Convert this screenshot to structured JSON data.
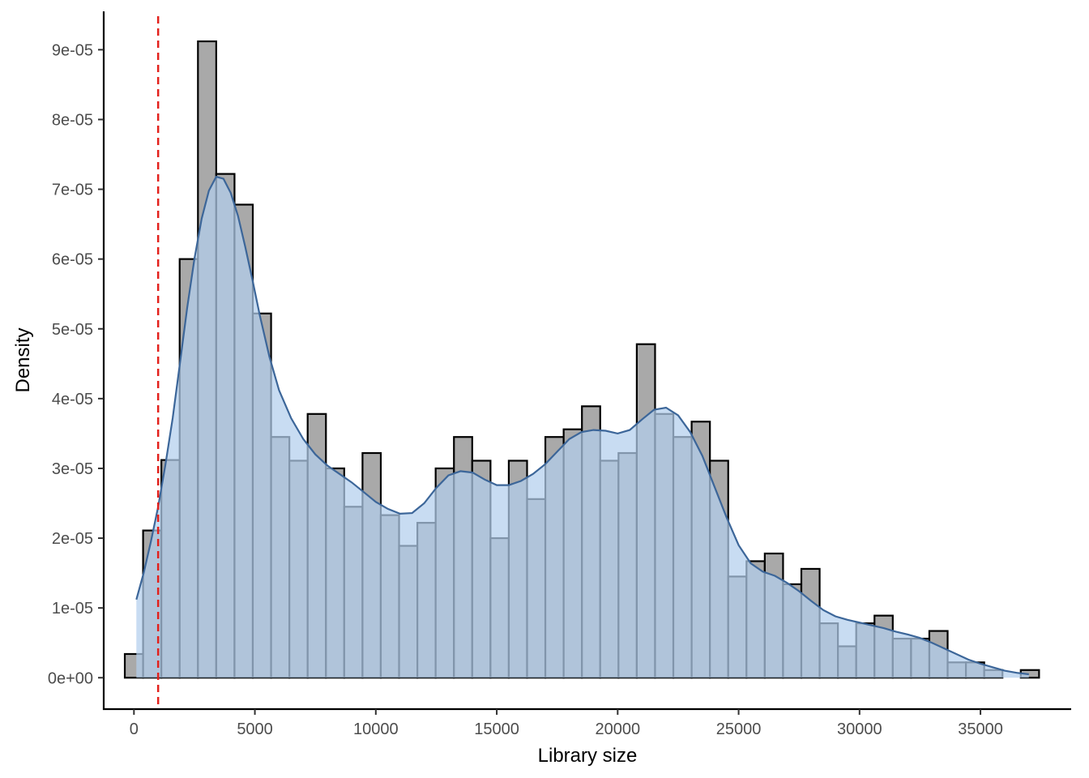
{
  "chart_data": {
    "type": "bar",
    "subtype": "histogram-with-density",
    "xlabel": "Library size",
    "ylabel": "Density",
    "xlim": [
      -1250,
      38750
    ],
    "ylim": [
      -4.5e-06,
      9.55e-05
    ],
    "x_ticks": [
      0,
      5000,
      10000,
      15000,
      20000,
      25000,
      30000,
      35000
    ],
    "x_tick_labels": [
      "0",
      "5000",
      "10000",
      "15000",
      "20000",
      "25000",
      "30000",
      "35000"
    ],
    "y_ticks": [
      0,
      1e-05,
      2e-05,
      3e-05,
      4e-05,
      5e-05,
      6e-05,
      7e-05,
      8e-05,
      9e-05
    ],
    "y_tick_labels": [
      "0e+00",
      "1e-05",
      "2e-05",
      "3e-05",
      "4e-05",
      "5e-05",
      "6e-05",
      "7e-05",
      "8e-05",
      "9e-05"
    ],
    "bin_width": 756,
    "bin_centers": [
      0,
      756,
      1512,
      2268,
      3024,
      3780,
      4536,
      5292,
      6048,
      6804,
      7560,
      8316,
      9072,
      9828,
      10584,
      11340,
      12096,
      12852,
      13608,
      14364,
      15120,
      15876,
      16632,
      17388,
      18144,
      18900,
      19656,
      20412,
      21168,
      21924,
      22680,
      23436,
      24192,
      24948,
      25704,
      26460,
      27216,
      27972,
      28728,
      29484,
      30240,
      30996,
      31752,
      32508,
      33264,
      34020,
      34776,
      35532,
      36288,
      37044
    ],
    "histogram_density": [
      3.4e-06,
      2.11e-05,
      3.12e-05,
      6e-05,
      9.12e-05,
      7.22e-05,
      6.78e-05,
      5.22e-05,
      3.45e-05,
      3.11e-05,
      3.78e-05,
      3e-05,
      2.45e-05,
      3.22e-05,
      2.33e-05,
      1.89e-05,
      2.22e-05,
      3e-05,
      3.45e-05,
      3.11e-05,
      2e-05,
      3.11e-05,
      2.56e-05,
      3.45e-05,
      3.56e-05,
      3.89e-05,
      3.11e-05,
      3.22e-05,
      4.78e-05,
      3.78e-05,
      3.45e-05,
      3.67e-05,
      3.11e-05,
      1.45e-05,
      1.67e-05,
      1.78e-05,
      1.34e-05,
      1.56e-05,
      7.8e-06,
      4.5e-06,
      7.8e-06,
      8.9e-06,
      5.6e-06,
      5.6e-06,
      6.7e-06,
      2.2e-06,
      2.2e-06,
      1.1e-06,
      0.0,
      1.1e-06
    ],
    "density_curve": {
      "x": [
        100,
        400,
        700,
        1000,
        1300,
        1600,
        1900,
        2200,
        2500,
        2800,
        3100,
        3400,
        3700,
        4000,
        4300,
        4600,
        4900,
        5200,
        5600,
        6000,
        6500,
        7000,
        7500,
        8000,
        8500,
        9000,
        9500,
        10000,
        10500,
        11000,
        11500,
        12000,
        12500,
        13000,
        13500,
        14000,
        14500,
        15000,
        15500,
        16000,
        16500,
        17000,
        17500,
        18000,
        18500,
        19000,
        19500,
        20000,
        20500,
        21000,
        21500,
        22000,
        22500,
        23000,
        23500,
        24000,
        24500,
        25000,
        25500,
        26000,
        26500,
        27000,
        27500,
        28000,
        28500,
        29000,
        29500,
        30000,
        30500,
        31000,
        31500,
        32000,
        32500,
        33000,
        33500,
        34000,
        34500,
        35000,
        35500,
        36000,
        36500,
        37000
      ],
      "y": [
        1.12e-05,
        1.5e-05,
        1.95e-05,
        2.45e-05,
        3.05e-05,
        3.72e-05,
        4.5e-05,
        5.3e-05,
        6e-05,
        6.58e-05,
        6.98e-05,
        7.18e-05,
        7.15e-05,
        6.95e-05,
        6.62e-05,
        6.18e-05,
        5.7e-05,
        5.2e-05,
        4.6e-05,
        4.12e-05,
        3.72e-05,
        3.42e-05,
        3.2e-05,
        3.04e-05,
        2.92e-05,
        2.8e-05,
        2.66e-05,
        2.52e-05,
        2.42e-05,
        2.35e-05,
        2.36e-05,
        2.5e-05,
        2.72e-05,
        2.9e-05,
        2.96e-05,
        2.94e-05,
        2.84e-05,
        2.76e-05,
        2.76e-05,
        2.82e-05,
        2.92e-05,
        3.06e-05,
        3.24e-05,
        3.42e-05,
        3.52e-05,
        3.55e-05,
        3.54e-05,
        3.5e-05,
        3.55e-05,
        3.7e-05,
        3.84e-05,
        3.87e-05,
        3.76e-05,
        3.52e-05,
        3.18e-05,
        2.74e-05,
        2.3e-05,
        1.9e-05,
        1.64e-05,
        1.52e-05,
        1.46e-05,
        1.36e-05,
        1.24e-05,
        1.1e-05,
        9.7e-06,
        8.8e-06,
        8.3e-06,
        7.9e-06,
        7.5e-06,
        7.1e-06,
        6.6e-06,
        6.2e-06,
        5.7e-06,
        5e-06,
        4.2e-06,
        3.4e-06,
        2.6e-06,
        2e-06,
        1.5e-06,
        1e-06,
        7e-07,
        5e-07
      ]
    },
    "threshold_x": 1000,
    "grid": false,
    "legend": "none",
    "colors": {
      "histogram_fill": "#a9a9a9",
      "histogram_stroke": "#000000",
      "density_fill": "#b3cfed",
      "density_line": "#3c6699",
      "threshold": "#e3211c"
    }
  }
}
